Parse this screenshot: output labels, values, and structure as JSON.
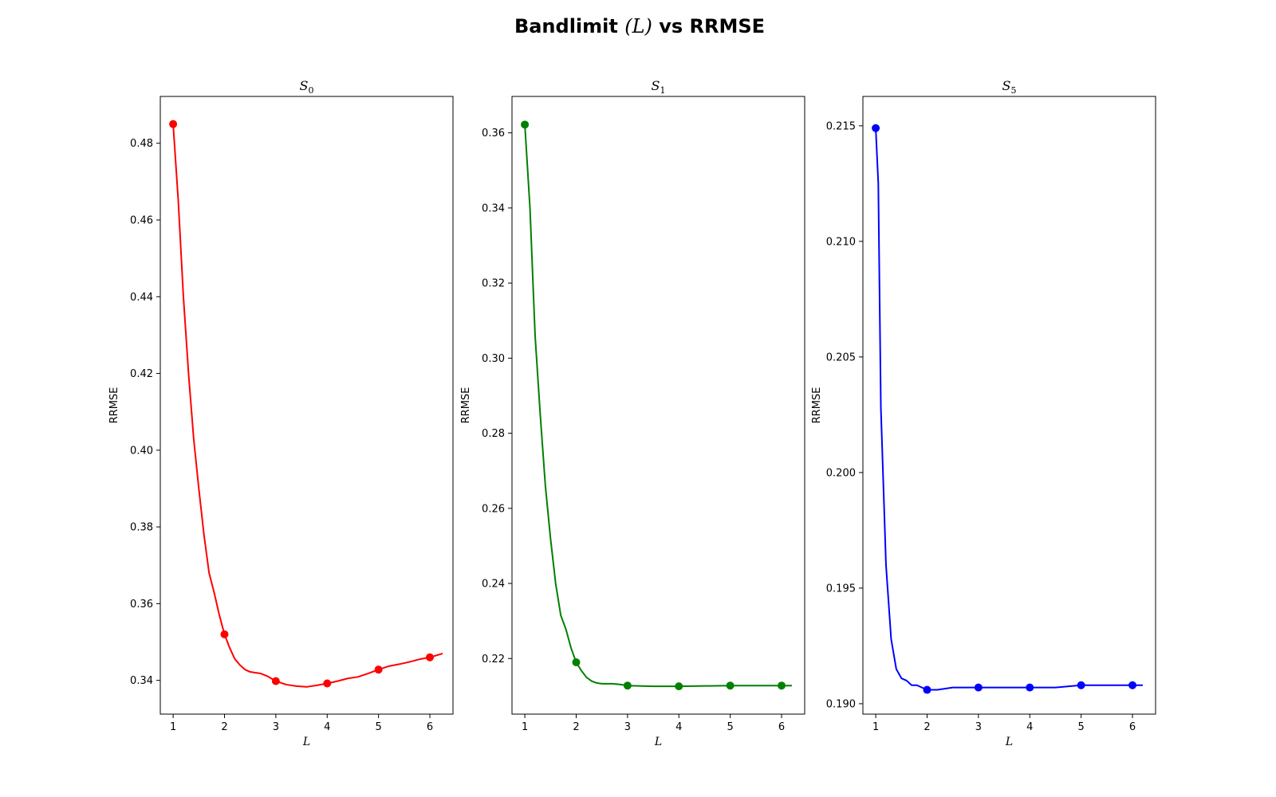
{
  "figure": {
    "title_main": "Bandlimit ",
    "title_italic": "(L)",
    "title_end": " vs RRMSE"
  },
  "chart_data": [
    {
      "type": "line",
      "title_base": "S",
      "title_sub": "0",
      "xlabel": "L",
      "ylabel": "RRMSE",
      "color": "#ff0000",
      "xlim": [
        0.75,
        6.45
      ],
      "ylim": [
        0.3312,
        0.4922
      ],
      "xticks": [
        1,
        2,
        3,
        4,
        5,
        6
      ],
      "yticks": [
        0.34,
        0.36,
        0.38,
        0.4,
        0.42,
        0.44,
        0.46,
        0.48
      ],
      "ytick_labels": [
        "0.34",
        "0.36",
        "0.38",
        "0.40",
        "0.42",
        "0.44",
        "0.46",
        "0.48"
      ],
      "markers": [
        {
          "x": 1,
          "y": 0.485
        },
        {
          "x": 2,
          "y": 0.352
        },
        {
          "x": 3,
          "y": 0.3398
        },
        {
          "x": 4,
          "y": 0.3392
        },
        {
          "x": 5,
          "y": 0.3428
        },
        {
          "x": 6,
          "y": 0.346
        }
      ],
      "curve": [
        {
          "x": 1.0,
          "y": 0.485
        },
        {
          "x": 1.1,
          "y": 0.465
        },
        {
          "x": 1.2,
          "y": 0.44
        },
        {
          "x": 1.3,
          "y": 0.42
        },
        {
          "x": 1.4,
          "y": 0.403
        },
        {
          "x": 1.5,
          "y": 0.39
        },
        {
          "x": 1.6,
          "y": 0.378
        },
        {
          "x": 1.7,
          "y": 0.368
        },
        {
          "x": 1.8,
          "y": 0.3628
        },
        {
          "x": 1.9,
          "y": 0.357
        },
        {
          "x": 2.0,
          "y": 0.352
        },
        {
          "x": 2.1,
          "y": 0.3485
        },
        {
          "x": 2.2,
          "y": 0.3456
        },
        {
          "x": 2.3,
          "y": 0.344
        },
        {
          "x": 2.4,
          "y": 0.3428
        },
        {
          "x": 2.5,
          "y": 0.3422
        },
        {
          "x": 2.7,
          "y": 0.3418
        },
        {
          "x": 2.85,
          "y": 0.341
        },
        {
          "x": 3.0,
          "y": 0.3398
        },
        {
          "x": 3.2,
          "y": 0.3389
        },
        {
          "x": 3.4,
          "y": 0.3385
        },
        {
          "x": 3.6,
          "y": 0.3383
        },
        {
          "x": 3.8,
          "y": 0.3387
        },
        {
          "x": 4.0,
          "y": 0.3392
        },
        {
          "x": 4.2,
          "y": 0.3398
        },
        {
          "x": 4.4,
          "y": 0.3405
        },
        {
          "x": 4.6,
          "y": 0.3409
        },
        {
          "x": 4.8,
          "y": 0.3418
        },
        {
          "x": 5.0,
          "y": 0.3428
        },
        {
          "x": 5.2,
          "y": 0.3437
        },
        {
          "x": 5.4,
          "y": 0.3442
        },
        {
          "x": 5.6,
          "y": 0.3448
        },
        {
          "x": 5.8,
          "y": 0.3455
        },
        {
          "x": 6.0,
          "y": 0.346
        },
        {
          "x": 6.2,
          "y": 0.3468
        },
        {
          "x": 6.25,
          "y": 0.347
        }
      ]
    },
    {
      "type": "line",
      "title_base": "S",
      "title_sub": "1",
      "xlabel": "L",
      "ylabel": "RRMSE",
      "color": "#008000",
      "xlim": [
        0.75,
        6.45
      ],
      "ylim": [
        0.2052,
        0.3697
      ],
      "xticks": [
        1,
        2,
        3,
        4,
        5,
        6
      ],
      "yticks": [
        0.22,
        0.24,
        0.26,
        0.28,
        0.3,
        0.32,
        0.34,
        0.36
      ],
      "ytick_labels": [
        "0.22",
        "0.24",
        "0.26",
        "0.28",
        "0.30",
        "0.32",
        "0.34",
        "0.36"
      ],
      "markers": [
        {
          "x": 1,
          "y": 0.3622
        },
        {
          "x": 2,
          "y": 0.219
        },
        {
          "x": 3,
          "y": 0.2128
        },
        {
          "x": 4,
          "y": 0.2126
        },
        {
          "x": 5,
          "y": 0.2128
        },
        {
          "x": 6,
          "y": 0.2128
        }
      ],
      "curve": [
        {
          "x": 1.0,
          "y": 0.3622
        },
        {
          "x": 1.1,
          "y": 0.34
        },
        {
          "x": 1.2,
          "y": 0.306
        },
        {
          "x": 1.3,
          "y": 0.285
        },
        {
          "x": 1.4,
          "y": 0.266
        },
        {
          "x": 1.5,
          "y": 0.252
        },
        {
          "x": 1.6,
          "y": 0.24
        },
        {
          "x": 1.7,
          "y": 0.2315
        },
        {
          "x": 1.8,
          "y": 0.2278
        },
        {
          "x": 1.9,
          "y": 0.2228
        },
        {
          "x": 2.0,
          "y": 0.219
        },
        {
          "x": 2.1,
          "y": 0.2168
        },
        {
          "x": 2.2,
          "y": 0.215
        },
        {
          "x": 2.3,
          "y": 0.214
        },
        {
          "x": 2.4,
          "y": 0.2135
        },
        {
          "x": 2.5,
          "y": 0.2133
        },
        {
          "x": 2.7,
          "y": 0.2133
        },
        {
          "x": 2.85,
          "y": 0.2131
        },
        {
          "x": 3.0,
          "y": 0.2128
        },
        {
          "x": 3.5,
          "y": 0.2126
        },
        {
          "x": 4.0,
          "y": 0.2126
        },
        {
          "x": 4.5,
          "y": 0.2127
        },
        {
          "x": 5.0,
          "y": 0.2128
        },
        {
          "x": 5.5,
          "y": 0.2128
        },
        {
          "x": 6.0,
          "y": 0.2128
        },
        {
          "x": 6.2,
          "y": 0.2128
        }
      ]
    },
    {
      "type": "line",
      "title_base": "S",
      "title_sub": "5",
      "xlabel": "L",
      "ylabel": "RRMSE",
      "color": "#0000ff",
      "xlim": [
        0.75,
        6.45
      ],
      "ylim": [
        0.18955,
        0.21627
      ],
      "xticks": [
        1,
        2,
        3,
        4,
        5,
        6
      ],
      "yticks": [
        0.19,
        0.195,
        0.2,
        0.205,
        0.21,
        0.215
      ],
      "ytick_labels": [
        "0.190",
        "0.195",
        "0.200",
        "0.205",
        "0.210",
        "0.215"
      ],
      "markers": [
        {
          "x": 1,
          "y": 0.2149
        },
        {
          "x": 2,
          "y": 0.1906
        },
        {
          "x": 3,
          "y": 0.1907
        },
        {
          "x": 4,
          "y": 0.1907
        },
        {
          "x": 5,
          "y": 0.1908
        },
        {
          "x": 6,
          "y": 0.1908
        }
      ],
      "curve": [
        {
          "x": 1.0,
          "y": 0.2149
        },
        {
          "x": 1.05,
          "y": 0.2125
        },
        {
          "x": 1.1,
          "y": 0.2028
        },
        {
          "x": 1.2,
          "y": 0.196
        },
        {
          "x": 1.3,
          "y": 0.1928
        },
        {
          "x": 1.4,
          "y": 0.1915
        },
        {
          "x": 1.5,
          "y": 0.1911
        },
        {
          "x": 1.6,
          "y": 0.191
        },
        {
          "x": 1.7,
          "y": 0.1908
        },
        {
          "x": 1.8,
          "y": 0.1908
        },
        {
          "x": 1.9,
          "y": 0.1907
        },
        {
          "x": 2.0,
          "y": 0.1906
        },
        {
          "x": 2.2,
          "y": 0.1906
        },
        {
          "x": 2.5,
          "y": 0.1907
        },
        {
          "x": 3.0,
          "y": 0.1907
        },
        {
          "x": 3.5,
          "y": 0.1907
        },
        {
          "x": 4.0,
          "y": 0.1907
        },
        {
          "x": 4.5,
          "y": 0.1907
        },
        {
          "x": 5.0,
          "y": 0.1908
        },
        {
          "x": 5.5,
          "y": 0.1908
        },
        {
          "x": 6.0,
          "y": 0.1908
        },
        {
          "x": 6.2,
          "y": 0.1908
        }
      ]
    }
  ]
}
